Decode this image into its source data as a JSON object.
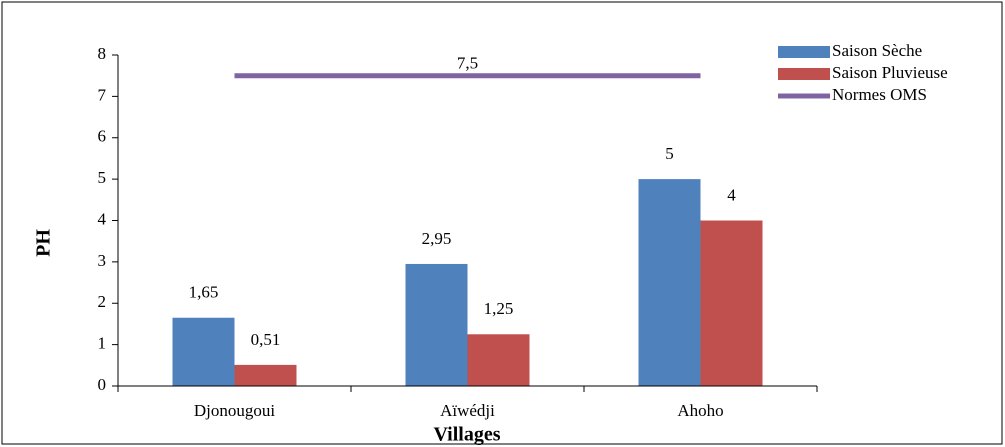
{
  "chart_data": {
    "type": "bar",
    "categories": [
      "Djonougoui",
      "Aïwédji",
      "Ahoho"
    ],
    "series": [
      {
        "name": "Saison Sèche",
        "color": "#4f81bd",
        "values": [
          1.65,
          2.95,
          5
        ],
        "value_labels": [
          "1,65",
          "2,95",
          "5"
        ]
      },
      {
        "name": "Saison Pluvieuse",
        "color": "#c0504d",
        "values": [
          0.51,
          1.25,
          4
        ],
        "value_labels": [
          "0,51",
          "1,25",
          "4"
        ]
      },
      {
        "name": "Normes OMS",
        "type": "line",
        "color": "#8064a2",
        "values": [
          7.5,
          7.5,
          7.5
        ],
        "value_labels": [
          null,
          "7,5",
          null
        ]
      }
    ],
    "ylabel": "PH",
    "xlabel": "Villages",
    "ylim": [
      0,
      8
    ],
    "yticks": [
      0,
      1,
      2,
      3,
      4,
      5,
      6,
      7,
      8
    ],
    "legend": "upper right"
  }
}
